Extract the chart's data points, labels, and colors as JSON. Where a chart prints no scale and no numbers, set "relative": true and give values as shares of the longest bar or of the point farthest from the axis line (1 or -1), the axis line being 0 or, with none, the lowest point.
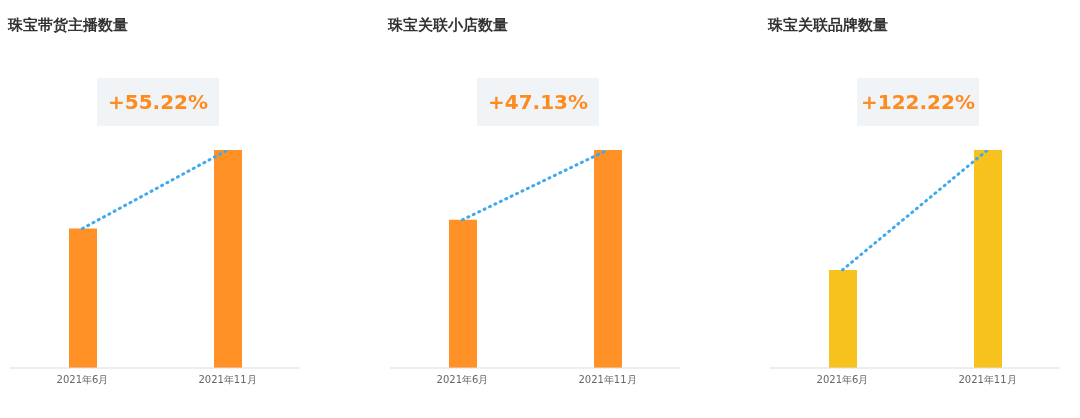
{
  "chart_data": [
    {
      "type": "bar",
      "title": "珠宝带货主播数量",
      "annotations": [
        "+55.22%"
      ],
      "categories": [
        "2021年6月",
        "2021年11月"
      ],
      "relative": true,
      "marker": "none",
      "series": [
        {
          "color": "#ff9126",
          "values": [
            0.64,
            1
          ]
        },
        {
          "type": "line",
          "color": "#3fa9f0",
          "line_style": "dotted",
          "values": [
            0.64,
            1
          ]
        }
      ]
    },
    {
      "type": "bar",
      "title": "珠宝关联小店数量",
      "annotations": [
        "+47.13%"
      ],
      "categories": [
        "2021年6月",
        "2021年11月"
      ],
      "relative": true,
      "marker": "none",
      "series": [
        {
          "color": "#ff9126",
          "values": [
            0.68,
            1
          ]
        },
        {
          "type": "line",
          "color": "#3fa9f0",
          "line_style": "dotted",
          "values": [
            0.68,
            1
          ]
        }
      ]
    },
    {
      "type": "bar",
      "title": "珠宝关联品牌数量",
      "annotations": [
        "+122.22%"
      ],
      "categories": [
        "2021年6月",
        "2021年11月"
      ],
      "relative": true,
      "marker": "none",
      "series": [
        {
          "color": "#f8c21e",
          "values": [
            0.45,
            1
          ]
        },
        {
          "type": "line",
          "color": "#3fa9f0",
          "line_style": "dotted",
          "values": [
            0.45,
            1
          ]
        }
      ]
    }
  ]
}
